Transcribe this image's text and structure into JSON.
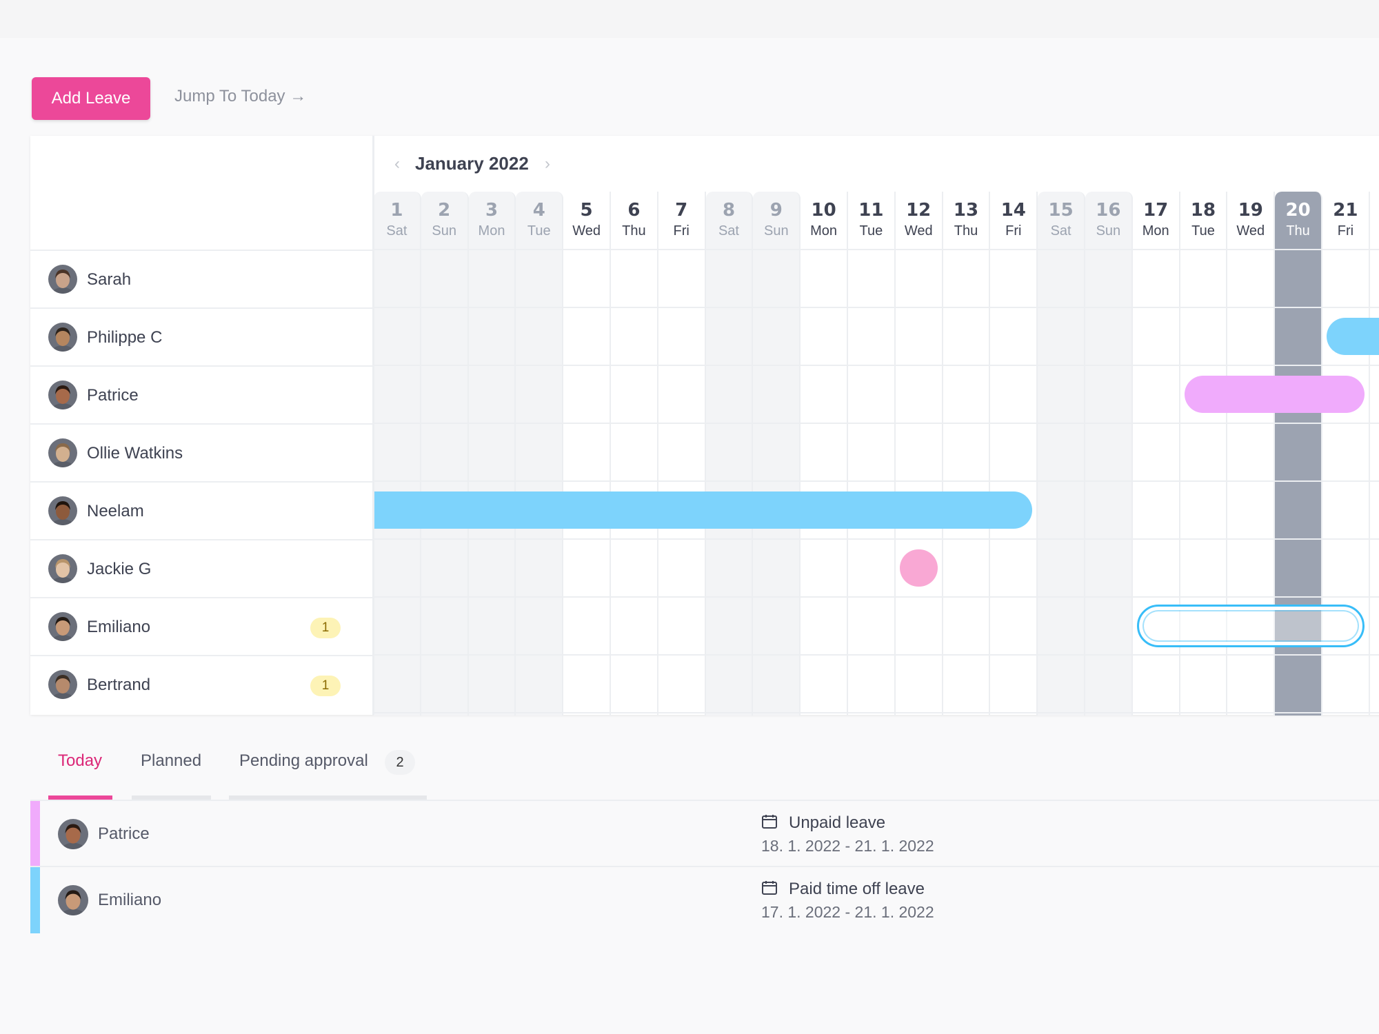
{
  "toolbar": {
    "add_leave_label": "Add Leave",
    "jump_today_label": "Jump To Today",
    "jump_arrow": "→"
  },
  "calendar": {
    "month_label": "January 2022",
    "prev_glyph": "‹",
    "next_glyph": "›",
    "days": [
      {
        "num": "1",
        "name": "Sat",
        "type": "weekend"
      },
      {
        "num": "2",
        "name": "Sun",
        "type": "weekend"
      },
      {
        "num": "3",
        "name": "Mon",
        "type": "weekend"
      },
      {
        "num": "4",
        "name": "Tue",
        "type": "weekend"
      },
      {
        "num": "5",
        "name": "Wed",
        "type": "work"
      },
      {
        "num": "6",
        "name": "Thu",
        "type": "work"
      },
      {
        "num": "7",
        "name": "Fri",
        "type": "work"
      },
      {
        "num": "8",
        "name": "Sat",
        "type": "weekend"
      },
      {
        "num": "9",
        "name": "Sun",
        "type": "weekend"
      },
      {
        "num": "10",
        "name": "Mon",
        "type": "work"
      },
      {
        "num": "11",
        "name": "Tue",
        "type": "work"
      },
      {
        "num": "12",
        "name": "Wed",
        "type": "work"
      },
      {
        "num": "13",
        "name": "Thu",
        "type": "work"
      },
      {
        "num": "14",
        "name": "Fri",
        "type": "work"
      },
      {
        "num": "15",
        "name": "Sat",
        "type": "weekend"
      },
      {
        "num": "16",
        "name": "Sun",
        "type": "weekend"
      },
      {
        "num": "17",
        "name": "Mon",
        "type": "work"
      },
      {
        "num": "18",
        "name": "Tue",
        "type": "work"
      },
      {
        "num": "19",
        "name": "Wed",
        "type": "work"
      },
      {
        "num": "20",
        "name": "Thu",
        "type": "today"
      },
      {
        "num": "21",
        "name": "Fri",
        "type": "work"
      }
    ]
  },
  "people": [
    {
      "name": "Sarah",
      "badge": "",
      "skin": "#c9a38a",
      "hair": "#4a3326"
    },
    {
      "name": "Philippe C",
      "badge": "",
      "skin": "#b5865f",
      "hair": "#2d241c"
    },
    {
      "name": "Patrice",
      "badge": "",
      "skin": "#a76a4a",
      "hair": "#2a1a12"
    },
    {
      "name": "Ollie Watkins",
      "badge": "",
      "skin": "#d2b08f",
      "hair": "#8a6a4a"
    },
    {
      "name": "Neelam",
      "badge": "",
      "skin": "#8d5a3c",
      "hair": "#1e130c"
    },
    {
      "name": "Jackie G",
      "badge": "",
      "skin": "#e2c3a6",
      "hair": "#b8946a"
    },
    {
      "name": "Emiliano",
      "badge": "1",
      "skin": "#c89a78",
      "hair": "#231a14"
    },
    {
      "name": "Bertrand",
      "badge": "1",
      "skin": "#b68a6c",
      "hair": "#3b2e24"
    }
  ],
  "leaves": [
    {
      "person": 1,
      "start": 21,
      "end": 22,
      "style": "solid",
      "color": "#7dd3fc"
    },
    {
      "person": 2,
      "start": 18,
      "end": 21,
      "style": "solid",
      "color": "#f0abfc"
    },
    {
      "person": 4,
      "start": 1,
      "end": 14,
      "style": "solid",
      "color": "#7dd3fc"
    },
    {
      "person": 5,
      "start": 12,
      "end": 12,
      "style": "solid",
      "color": "#f9a8d4"
    },
    {
      "person": 6,
      "start": 17,
      "end": 21,
      "style": "pending",
      "color": "#38bdf8"
    }
  ],
  "tabs": {
    "today": "Today",
    "planned": "Planned",
    "pending": "Pending approval",
    "pending_count": "2"
  },
  "today_list": [
    {
      "name": "Patrice",
      "type": "Unpaid leave",
      "dates": "18. 1. 2022 - 21. 1. 2022",
      "color": "#f0abfc",
      "skin": "#a76a4a",
      "hair": "#2a1a12"
    },
    {
      "name": "Emiliano",
      "type": "Paid time off leave",
      "dates": "17. 1. 2022 - 21. 1. 2022",
      "color": "#7dd3fc",
      "skin": "#c89a78",
      "hair": "#231a14"
    }
  ],
  "colors": {
    "accent": "#ec4899",
    "today_column": "#9ca3b1",
    "weekend": "#f3f4f6"
  }
}
